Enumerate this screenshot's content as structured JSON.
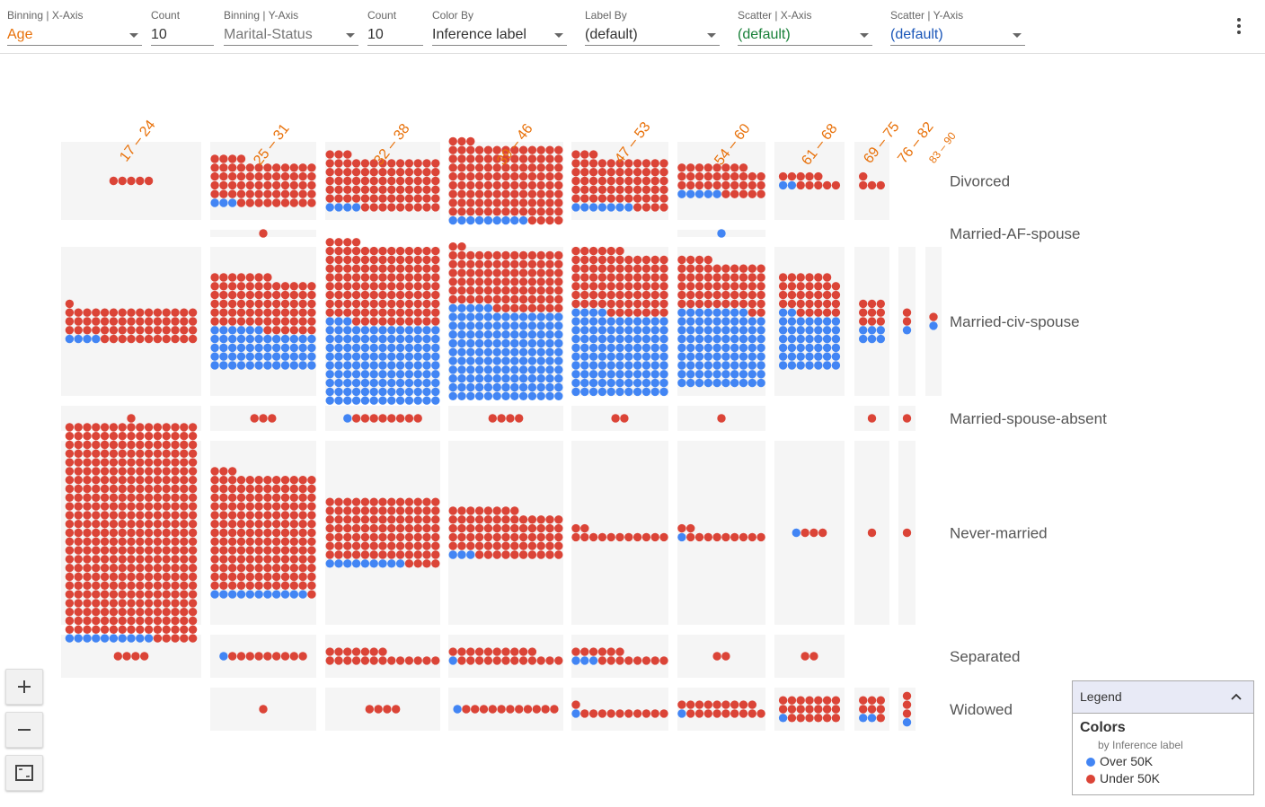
{
  "toolbar": {
    "controls": [
      {
        "label": "Binning | X-Axis",
        "value": "Age",
        "color": "#e8710a",
        "dropdown": true
      },
      {
        "label": "Count",
        "value": "10",
        "color": "#333333",
        "dropdown": false
      },
      {
        "label": "Binning | Y-Axis",
        "value": "Marital-Status",
        "color": "#777777",
        "dropdown": true
      },
      {
        "label": "Count",
        "value": "10",
        "color": "#333333",
        "dropdown": false
      },
      {
        "label": "Color By",
        "value": "Inference label",
        "color": "#333333",
        "dropdown": true
      },
      {
        "label": "Label By",
        "value": "(default)",
        "color": "#333333",
        "dropdown": true
      },
      {
        "label": "Scatter | X-Axis",
        "value": "(default)",
        "color": "#188038",
        "dropdown": true
      },
      {
        "label": "Scatter | Y-Axis",
        "value": "(default)",
        "color": "#1a56b8",
        "dropdown": true
      }
    ],
    "menu_icon": "more-vert-icon"
  },
  "facets": {
    "x_bins": [
      "17 – 24",
      "25 – 31",
      "32 – 38",
      "39 – 46",
      "47 – 53",
      "54 – 60",
      "61 – 68",
      "69 – 75",
      "76 – 82",
      "83 – 90"
    ],
    "y_bins": [
      "Divorced",
      "Married-AF-spouse",
      "Married-civ-spouse",
      "Married-spouse-absent",
      "Never-married",
      "Separated",
      "Widowed"
    ],
    "x_label_color": "#e8710a",
    "cells": [
      {
        "x": 0,
        "y": 0,
        "under": 5,
        "over": 0
      },
      {
        "x": 1,
        "y": 0,
        "under": 61,
        "over": 3
      },
      {
        "x": 2,
        "y": 0,
        "under": 77,
        "over": 4
      },
      {
        "x": 3,
        "y": 0,
        "under": 111,
        "over": 9
      },
      {
        "x": 4,
        "y": 0,
        "under": 62,
        "over": 7
      },
      {
        "x": 5,
        "y": 0,
        "under": 33,
        "over": 5
      },
      {
        "x": 6,
        "y": 0,
        "under": 10,
        "over": 2
      },
      {
        "x": 7,
        "y": 0,
        "under": 4,
        "over": 0
      },
      {
        "x": 1,
        "y": 1,
        "under": 1,
        "over": 0
      },
      {
        "x": 5,
        "y": 1,
        "under": 0,
        "over": 1
      },
      {
        "x": 0,
        "y": 2,
        "under": 57,
        "over": 4
      },
      {
        "x": 1,
        "y": 2,
        "under": 73,
        "over": 54
      },
      {
        "x": 2,
        "y": 2,
        "under": 118,
        "over": 120
      },
      {
        "x": 3,
        "y": 2,
        "under": 88,
        "over": 135
      },
      {
        "x": 4,
        "y": 2,
        "under": 79,
        "over": 103
      },
      {
        "x": 5,
        "y": 2,
        "under": 56,
        "over": 88
      },
      {
        "x": 6,
        "y": 2,
        "under": 32,
        "over": 44
      },
      {
        "x": 7,
        "y": 2,
        "under": 9,
        "over": 6
      },
      {
        "x": 8,
        "y": 2,
        "under": 2,
        "over": 1
      },
      {
        "x": 9,
        "y": 2,
        "under": 1,
        "over": 1
      },
      {
        "x": 0,
        "y": 3,
        "under": 1,
        "over": 0
      },
      {
        "x": 1,
        "y": 3,
        "under": 3,
        "over": 0
      },
      {
        "x": 2,
        "y": 3,
        "under": 8,
        "over": 1
      },
      {
        "x": 3,
        "y": 3,
        "under": 4,
        "over": 0
      },
      {
        "x": 4,
        "y": 3,
        "under": 2,
        "over": 0
      },
      {
        "x": 5,
        "y": 3,
        "under": 1,
        "over": 0
      },
      {
        "x": 7,
        "y": 3,
        "under": 1,
        "over": 0
      },
      {
        "x": 8,
        "y": 3,
        "under": 1,
        "over": 0
      },
      {
        "x": 0,
        "y": 4,
        "under": 365,
        "over": 10
      },
      {
        "x": 1,
        "y": 4,
        "under": 160,
        "over": 11
      },
      {
        "x": 2,
        "y": 4,
        "under": 95,
        "over": 9
      },
      {
        "x": 3,
        "y": 4,
        "under": 70,
        "over": 3
      },
      {
        "x": 4,
        "y": 4,
        "under": 13,
        "over": 0
      },
      {
        "x": 5,
        "y": 4,
        "under": 11,
        "over": 1
      },
      {
        "x": 6,
        "y": 4,
        "under": 3,
        "over": 1
      },
      {
        "x": 7,
        "y": 4,
        "under": 1,
        "over": 0
      },
      {
        "x": 8,
        "y": 4,
        "under": 1,
        "over": 0
      },
      {
        "x": 0,
        "y": 5,
        "under": 4,
        "over": 0
      },
      {
        "x": 1,
        "y": 5,
        "under": 9,
        "over": 1
      },
      {
        "x": 2,
        "y": 5,
        "under": 20,
        "over": 0
      },
      {
        "x": 3,
        "y": 5,
        "under": 22,
        "over": 1
      },
      {
        "x": 4,
        "y": 5,
        "under": 14,
        "over": 3
      },
      {
        "x": 5,
        "y": 5,
        "under": 2,
        "over": 0
      },
      {
        "x": 6,
        "y": 5,
        "under": 2,
        "over": 0
      },
      {
        "x": 1,
        "y": 6,
        "under": 1,
        "over": 0
      },
      {
        "x": 2,
        "y": 6,
        "under": 4,
        "over": 0
      },
      {
        "x": 3,
        "y": 6,
        "under": 11,
        "over": 1
      },
      {
        "x": 4,
        "y": 6,
        "under": 11,
        "over": 1
      },
      {
        "x": 5,
        "y": 6,
        "under": 18,
        "over": 1
      },
      {
        "x": 6,
        "y": 6,
        "under": 20,
        "over": 1
      },
      {
        "x": 7,
        "y": 6,
        "under": 7,
        "over": 2
      },
      {
        "x": 8,
        "y": 6,
        "under": 3,
        "over": 1
      }
    ]
  },
  "legend": {
    "header": "Legend",
    "section_title": "Colors",
    "subtitle": "by Inference label",
    "items": [
      {
        "label": "Over 50K",
        "color": "#4285f4"
      },
      {
        "label": "Under 50K",
        "color": "#db4437"
      }
    ]
  },
  "zoom_controls": [
    {
      "name": "zoom-in-button",
      "icon": "plus-icon"
    },
    {
      "name": "zoom-out-button",
      "icon": "minus-icon"
    },
    {
      "name": "fit-to-screen-button",
      "icon": "fit-screen-icon"
    }
  ]
}
